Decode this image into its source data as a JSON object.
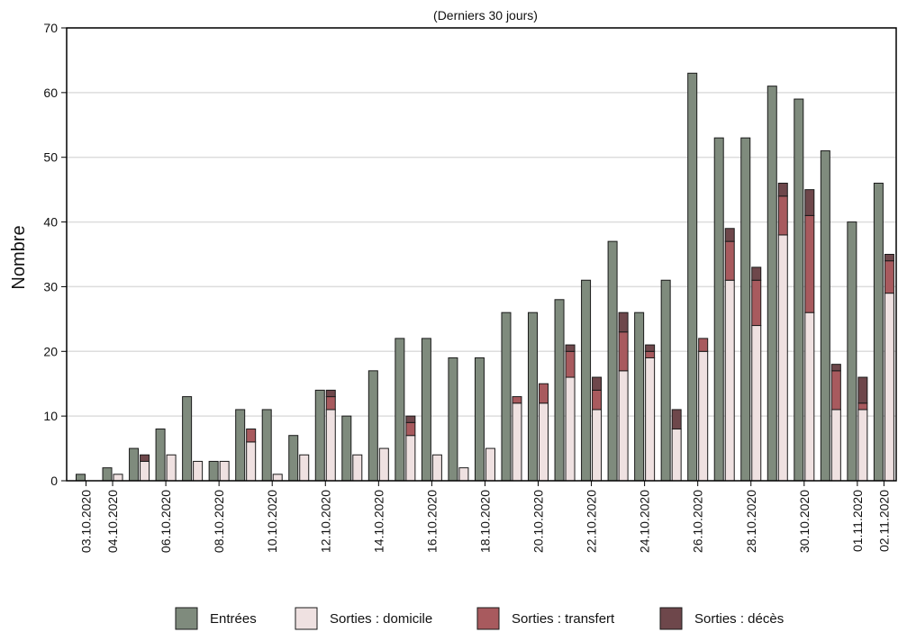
{
  "chart_data": {
    "type": "bar",
    "subtitle": "(Derniers 30 jours)",
    "ylabel": "Nombre",
    "xlabel": "",
    "ylim": [
      0,
      70
    ],
    "yticks": [
      0,
      10,
      20,
      30,
      40,
      50,
      60,
      70
    ],
    "grid": true,
    "legend_position": "bottom",
    "x_tick_labels": [
      "03.10.2020",
      "04.10.2020",
      "06.10.2020",
      "08.10.2020",
      "10.10.2020",
      "12.10.2020",
      "14.10.2020",
      "16.10.2020",
      "18.10.2020",
      "20.10.2020",
      "22.10.2020",
      "24.10.2020",
      "26.10.2020",
      "28.10.2020",
      "30.10.2020",
      "01.11.2020",
      "02.11.2020"
    ],
    "categories": [
      "03.10.2020",
      "04.10.2020",
      "05.10.2020",
      "06.10.2020",
      "07.10.2020",
      "08.10.2020",
      "09.10.2020",
      "10.10.2020",
      "11.10.2020",
      "12.10.2020",
      "13.10.2020",
      "14.10.2020",
      "15.10.2020",
      "16.10.2020",
      "17.10.2020",
      "18.10.2020",
      "19.10.2020",
      "20.10.2020",
      "21.10.2020",
      "22.10.2020",
      "23.10.2020",
      "24.10.2020",
      "25.10.2020",
      "26.10.2020",
      "27.10.2020",
      "28.10.2020",
      "29.10.2020",
      "30.10.2020",
      "31.10.2020",
      "01.11.2020",
      "02.11.2020"
    ],
    "series": [
      {
        "name": "Entrées",
        "color": "#7f8b7d",
        "role": "left",
        "values": [
          1,
          2,
          5,
          8,
          13,
          3,
          11,
          11,
          7,
          14,
          10,
          17,
          22,
          22,
          19,
          19,
          26,
          26,
          28,
          31,
          37,
          26,
          31,
          63,
          53,
          53,
          61,
          59,
          51,
          40,
          46
        ]
      },
      {
        "name": "Sorties : domicile",
        "color": "#efe1e1",
        "role": "stack",
        "values": [
          0,
          1,
          3,
          4,
          3,
          3,
          6,
          1,
          4,
          11,
          4,
          5,
          7,
          4,
          2,
          5,
          12,
          12,
          16,
          11,
          17,
          19,
          8,
          20,
          31,
          24,
          38,
          26,
          11,
          11,
          29
        ]
      },
      {
        "name": "Sorties : transfert",
        "color": "#a85a5e",
        "role": "stack",
        "values": [
          0,
          0,
          0,
          0,
          0,
          0,
          2,
          0,
          0,
          2,
          0,
          0,
          2,
          0,
          0,
          0,
          1,
          3,
          4,
          3,
          6,
          1,
          0,
          2,
          6,
          7,
          6,
          15,
          6,
          1,
          5
        ]
      },
      {
        "name": "Sorties : décès",
        "color": "#6e474b",
        "role": "stack",
        "values": [
          0,
          0,
          1,
          0,
          0,
          0,
          0,
          0,
          0,
          1,
          0,
          0,
          1,
          0,
          0,
          0,
          0,
          0,
          1,
          2,
          3,
          1,
          3,
          0,
          2,
          2,
          2,
          4,
          1,
          4,
          1
        ]
      }
    ]
  }
}
